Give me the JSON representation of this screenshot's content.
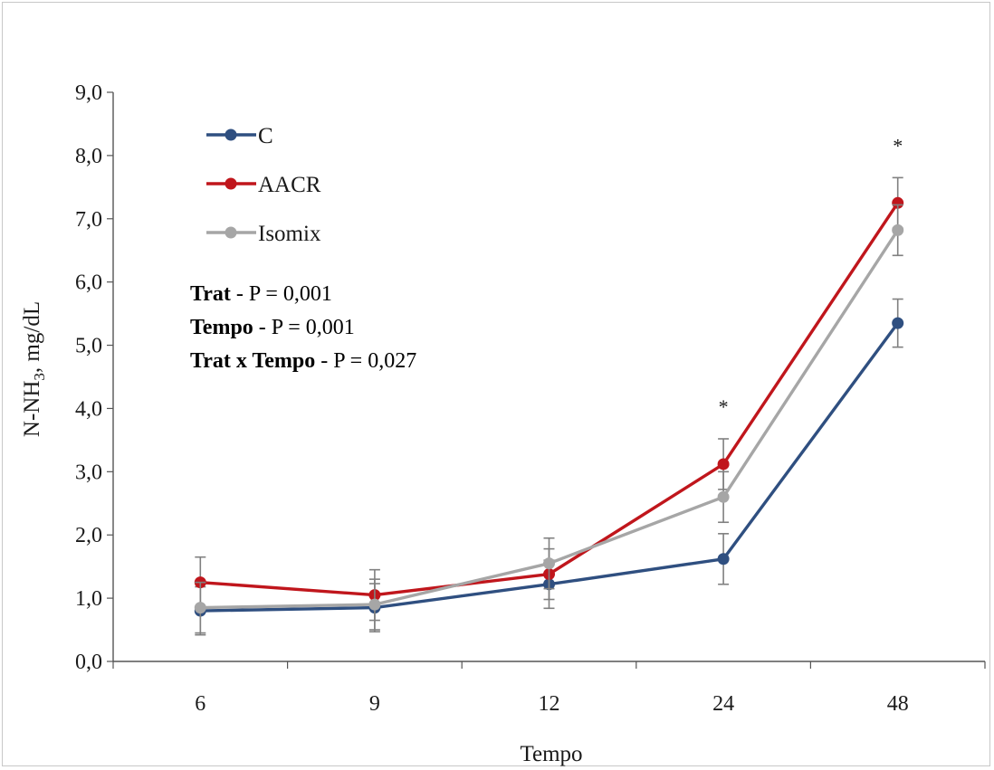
{
  "chart_data": {
    "type": "line",
    "title": "",
    "xlabel": "Tempo",
    "ylabel_main": "N-NH",
    "ylabel_sub": "3",
    "ylabel_tail": ", mg/dL",
    "categories": [
      "6",
      "9",
      "12",
      "24",
      "48"
    ],
    "ylim": [
      0,
      9
    ],
    "yticks": [
      "0,0",
      "1,0",
      "2,0",
      "3,0",
      "4,0",
      "5,0",
      "6,0",
      "7,0",
      "8,0",
      "9,0"
    ],
    "grid": false,
    "legend_position": "top-left",
    "series": [
      {
        "name": "C",
        "color": "#2f4f80",
        "values": [
          0.8,
          0.85,
          1.22,
          1.62,
          5.35
        ],
        "errors": [
          0.38,
          0.38,
          0.38,
          0.4,
          0.38
        ]
      },
      {
        "name": "AACR",
        "color": "#c0161c",
        "values": [
          1.25,
          1.05,
          1.38,
          3.12,
          7.25
        ],
        "errors": [
          0.4,
          0.4,
          0.4,
          0.4,
          0.4
        ]
      },
      {
        "name": "Isomix",
        "color": "#a6a6a6",
        "values": [
          0.85,
          0.9,
          1.55,
          2.6,
          6.82
        ],
        "errors": [
          0.4,
          0.4,
          0.4,
          0.4,
          0.4
        ]
      }
    ],
    "significance": [
      {
        "category": "24",
        "label": "*"
      },
      {
        "category": "48",
        "label": "*"
      }
    ],
    "annotations": [
      {
        "bold": "Trat",
        "text": " - P = 0,001"
      },
      {
        "bold": "Tempo",
        "text": " - P = 0,001"
      },
      {
        "bold": "Trat x Tempo",
        "text": " - P = 0,027"
      }
    ]
  }
}
